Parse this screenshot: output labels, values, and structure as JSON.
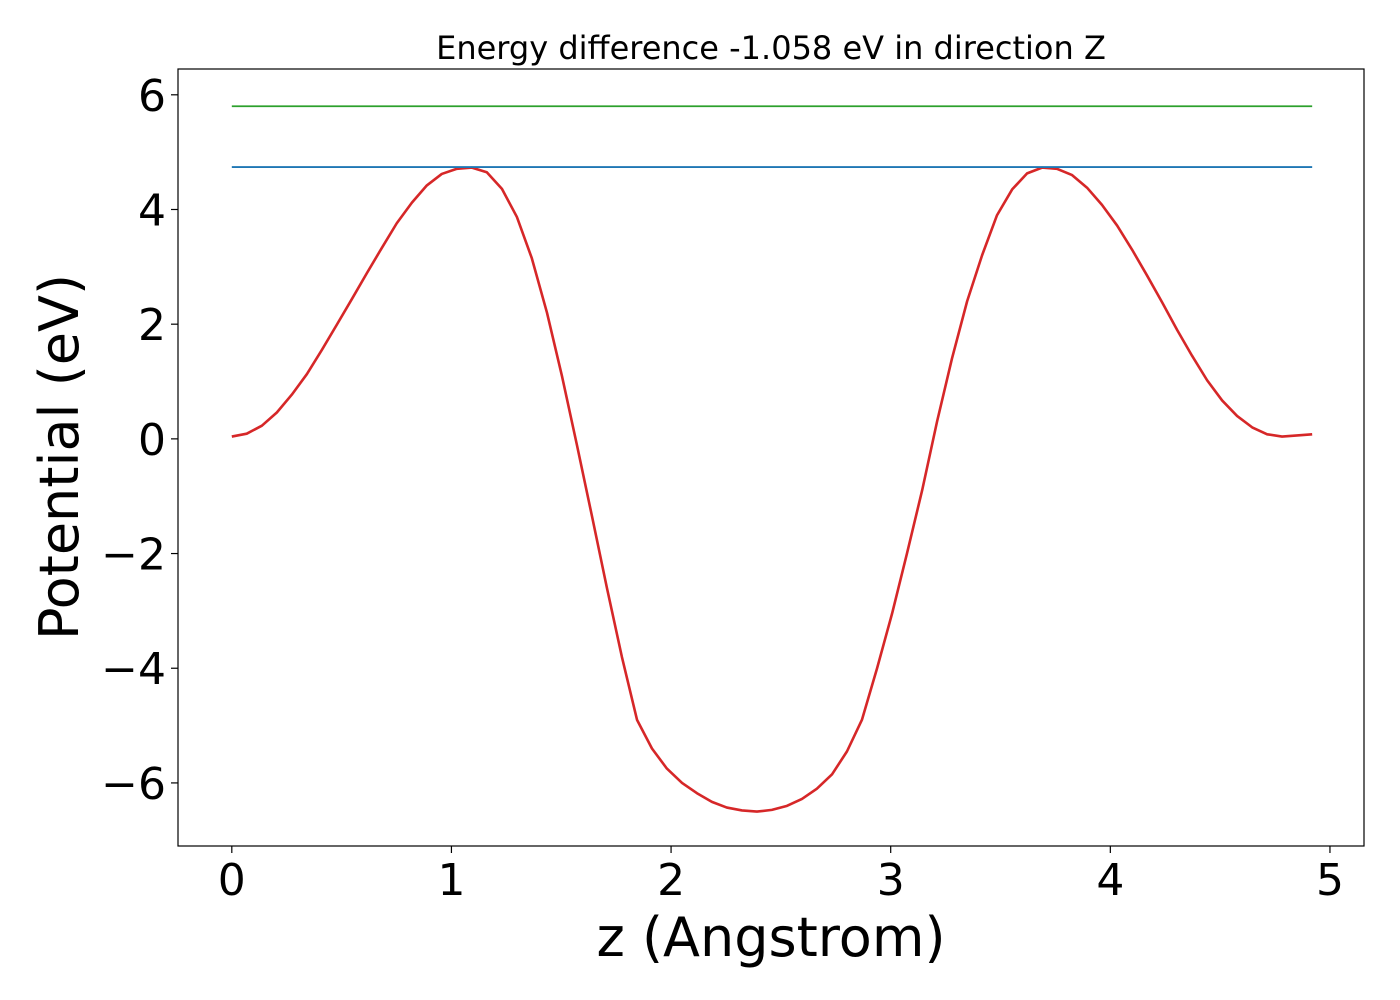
{
  "chart_data": {
    "type": "line",
    "title": "Energy difference -1.058 eV in direction Z",
    "xlabel": "z (Angstrom)",
    "ylabel": "Potential (eV)",
    "xlim": [
      -0.245,
      5.155
    ],
    "ylim": [
      -7.1,
      6.45
    ],
    "xticks": [
      0,
      1,
      2,
      3,
      4,
      5
    ],
    "xtick_labels": [
      "0",
      "1",
      "2",
      "3",
      "4",
      "5"
    ],
    "yticks": [
      -6,
      -4,
      -2,
      0,
      2,
      4,
      6
    ],
    "ytick_labels": [
      "−6",
      "−4",
      "−2",
      "0",
      "2",
      "4",
      "6"
    ],
    "grid": false,
    "series": [
      {
        "color": "#d62728",
        "x": [
          0.0,
          0.068,
          0.137,
          0.205,
          0.273,
          0.342,
          0.41,
          0.478,
          0.547,
          0.615,
          0.683,
          0.751,
          0.82,
          0.888,
          0.956,
          1.025,
          1.093,
          1.161,
          1.23,
          1.298,
          1.366,
          1.435,
          1.503,
          1.571,
          1.64,
          1.708,
          1.776,
          1.845,
          1.913,
          1.981,
          2.05,
          2.118,
          2.186,
          2.254,
          2.323,
          2.391,
          2.459,
          2.528,
          2.596,
          2.664,
          2.733,
          2.801,
          2.869,
          2.938,
          3.006,
          3.074,
          3.143,
          3.211,
          3.279,
          3.348,
          3.416,
          3.484,
          3.553,
          3.621,
          3.689,
          3.757,
          3.826,
          3.894,
          3.962,
          4.031,
          4.099,
          4.167,
          4.236,
          4.304,
          4.372,
          4.441,
          4.509,
          4.577,
          4.646,
          4.714,
          4.782,
          4.851,
          4.919
        ],
        "values": [
          0.04,
          0.09,
          0.23,
          0.46,
          0.77,
          1.13,
          1.55,
          1.99,
          2.44,
          2.89,
          3.33,
          3.76,
          4.12,
          4.42,
          4.62,
          4.71,
          4.73,
          4.65,
          4.36,
          3.87,
          3.15,
          2.2,
          1.1,
          -0.1,
          -1.35,
          -2.6,
          -3.8,
          -4.9,
          -5.4,
          -5.75,
          -6.0,
          -6.18,
          -6.33,
          -6.43,
          -6.48,
          -6.5,
          -6.47,
          -6.4,
          -6.28,
          -6.1,
          -5.85,
          -5.45,
          -4.9,
          -4.0,
          -3.05,
          -2.0,
          -0.9,
          0.3,
          1.4,
          2.4,
          3.2,
          3.9,
          4.35,
          4.63,
          4.73,
          4.71,
          4.6,
          4.38,
          4.08,
          3.72,
          3.3,
          2.85,
          2.38,
          1.9,
          1.45,
          1.02,
          0.67,
          0.4,
          0.2,
          0.08,
          0.04,
          0.06,
          0.08
        ]
      },
      {
        "color": "#1f77b4",
        "x": [
          0.0,
          4.919
        ],
        "values": [
          4.74,
          4.74
        ]
      },
      {
        "color": "#2ca02c",
        "x": [
          0.0,
          4.919
        ],
        "values": [
          5.8,
          5.8
        ]
      }
    ]
  }
}
